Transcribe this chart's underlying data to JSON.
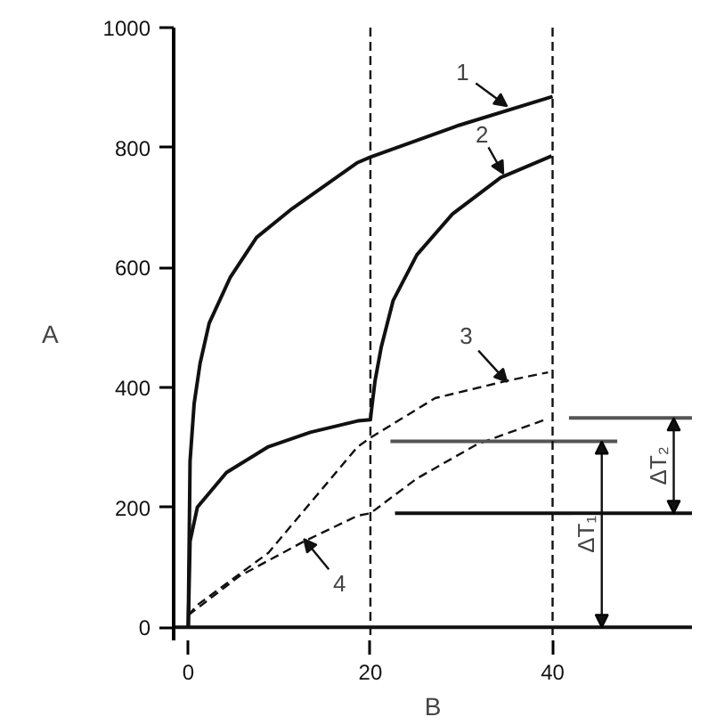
{
  "chart_data": {
    "type": "line",
    "xlabel": "B",
    "ylabel": "A",
    "xlim": [
      -1.6,
      55.3
    ],
    "ylim": [
      -22,
      1000
    ],
    "xticks": [
      0,
      20,
      40
    ],
    "yticks": [
      0,
      200,
      400,
      600,
      800,
      1000
    ],
    "grid": false,
    "marker": "none",
    "series": [
      {
        "color": "#111111",
        "line_style": "solid",
        "x": [
          0,
          0.2,
          0.65,
          1.3,
          2.3,
          4.6,
          7.5,
          11.4,
          18.6,
          20,
          29.7,
          40
        ],
        "values": [
          0,
          277,
          373,
          440,
          507,
          583,
          650,
          698,
          775,
          784,
          837,
          885
        ]
      },
      {
        "color": "#111111",
        "line_style": "solid",
        "x": [
          0,
          0.2,
          1,
          4.2,
          8.8,
          13.4,
          18.6,
          20,
          20.1,
          20.5,
          21.2,
          22.5,
          25.1,
          29,
          34.3,
          39.9
        ],
        "values": [
          0,
          143,
          200,
          258,
          301,
          325,
          344,
          346,
          360,
          410,
          468,
          545,
          621,
          689,
          750,
          786
        ]
      },
      {
        "color": "#111111",
        "line_style": "dashed",
        "x": [
          0,
          1,
          8.8,
          18.6,
          20,
          27.1,
          35,
          39.5
        ],
        "values": [
          20,
          37,
          124,
          301,
          316,
          382,
          411,
          425
        ]
      },
      {
        "color": "#111111",
        "line_style": "dashed",
        "x": [
          0,
          5.6,
          12.7,
          18.6,
          20,
          25.1,
          31.7,
          39.5
        ],
        "values": [
          20,
          85,
          143,
          186,
          190,
          248,
          305,
          348
        ]
      }
    ],
    "ref_lines": [
      {
        "axis": "x",
        "value": 20,
        "line_style": "dashed",
        "color": "#111111"
      },
      {
        "axis": "x",
        "value": 40,
        "line_style": "dashed",
        "color": "#111111"
      },
      {
        "axis": "y",
        "value": 0,
        "line_style": "solid",
        "color": "#111111"
      },
      {
        "axis": "y",
        "value": 310,
        "line_style": "solid",
        "color": "#555555"
      },
      {
        "axis": "y",
        "value": 190,
        "line_style": "solid",
        "color": "#111111"
      },
      {
        "axis": "y",
        "value": 349,
        "line_style": "solid",
        "color": "#555555"
      }
    ],
    "annotations": [
      {
        "text": "1",
        "x": 35,
        "y": 869
      },
      {
        "text": "2",
        "x": 34.6,
        "y": 756
      },
      {
        "text": "3",
        "x": 35,
        "y": 409
      },
      {
        "text": "4",
        "x": 12.7,
        "y": 147
      },
      "ΔT₁",
      "ΔT₂"
    ]
  }
}
